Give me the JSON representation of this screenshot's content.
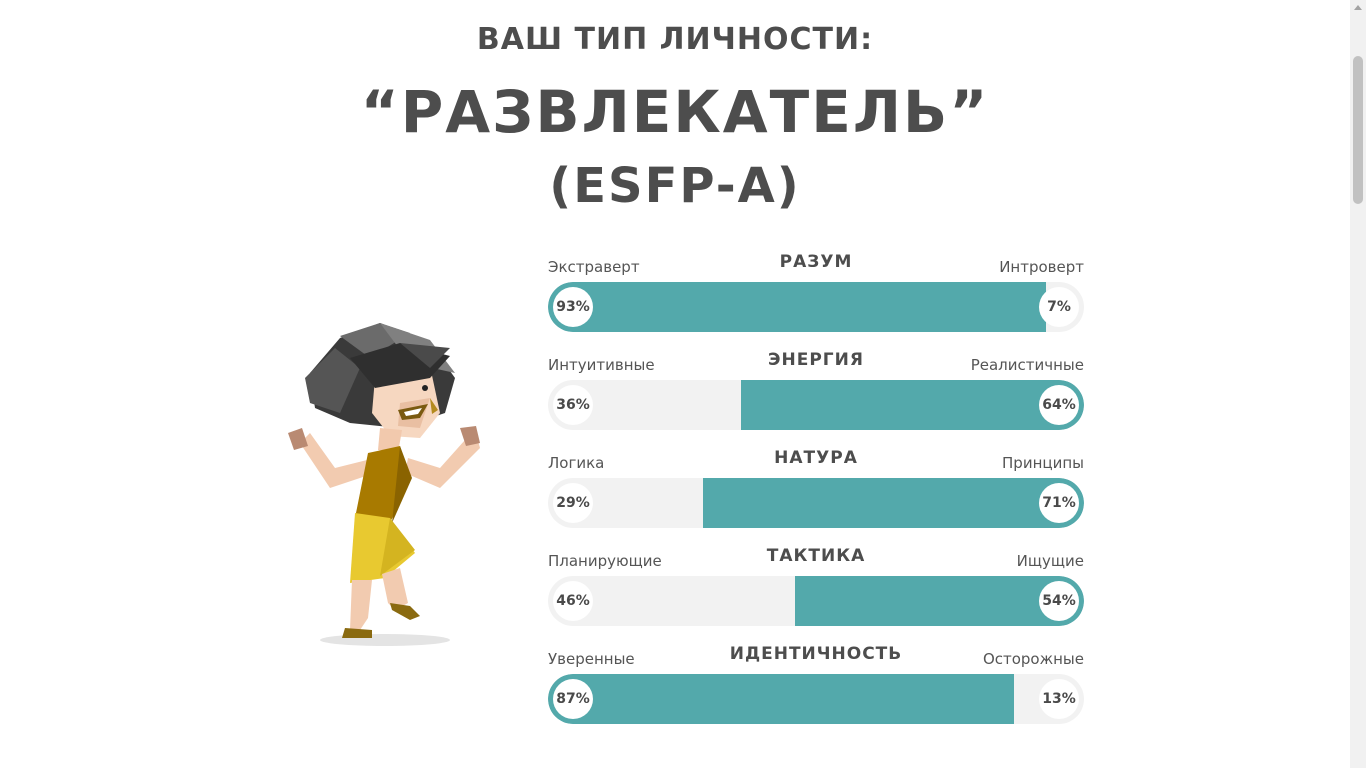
{
  "heading": {
    "subtitle": "ВАШ ТИП ЛИЧНОСТИ:",
    "type_name": "“РАЗВЛЕКАТЕЛЬ”",
    "type_code": "(ESFP-A)"
  },
  "illustration": {
    "icon": "entertainer-character-illustration"
  },
  "colors": {
    "accent": "#53a9ab",
    "track": "#f2f2f2",
    "text": "#4d4d4d"
  },
  "traits": [
    {
      "title": "РАЗУМ",
      "left_label": "Экстраверт",
      "right_label": "Интроверт",
      "left_pct": "93%",
      "right_pct": "7%",
      "dominant": "left",
      "value": 93
    },
    {
      "title": "ЭНЕРГИЯ",
      "left_label": "Интуитивные",
      "right_label": "Реалистичные",
      "left_pct": "36%",
      "right_pct": "64%",
      "dominant": "right",
      "value": 64
    },
    {
      "title": "НАТУРА",
      "left_label": "Логика",
      "right_label": "Принципы",
      "left_pct": "29%",
      "right_pct": "71%",
      "dominant": "right",
      "value": 71
    },
    {
      "title": "ТАКТИКА",
      "left_label": "Планирующие",
      "right_label": "Ищущие",
      "left_pct": "46%",
      "right_pct": "54%",
      "dominant": "right",
      "value": 54
    },
    {
      "title": "ИДЕНТИЧНОСТЬ",
      "left_label": "Уверенные",
      "right_label": "Осторожные",
      "left_pct": "87%",
      "right_pct": "13%",
      "dominant": "left",
      "value": 87
    }
  ]
}
